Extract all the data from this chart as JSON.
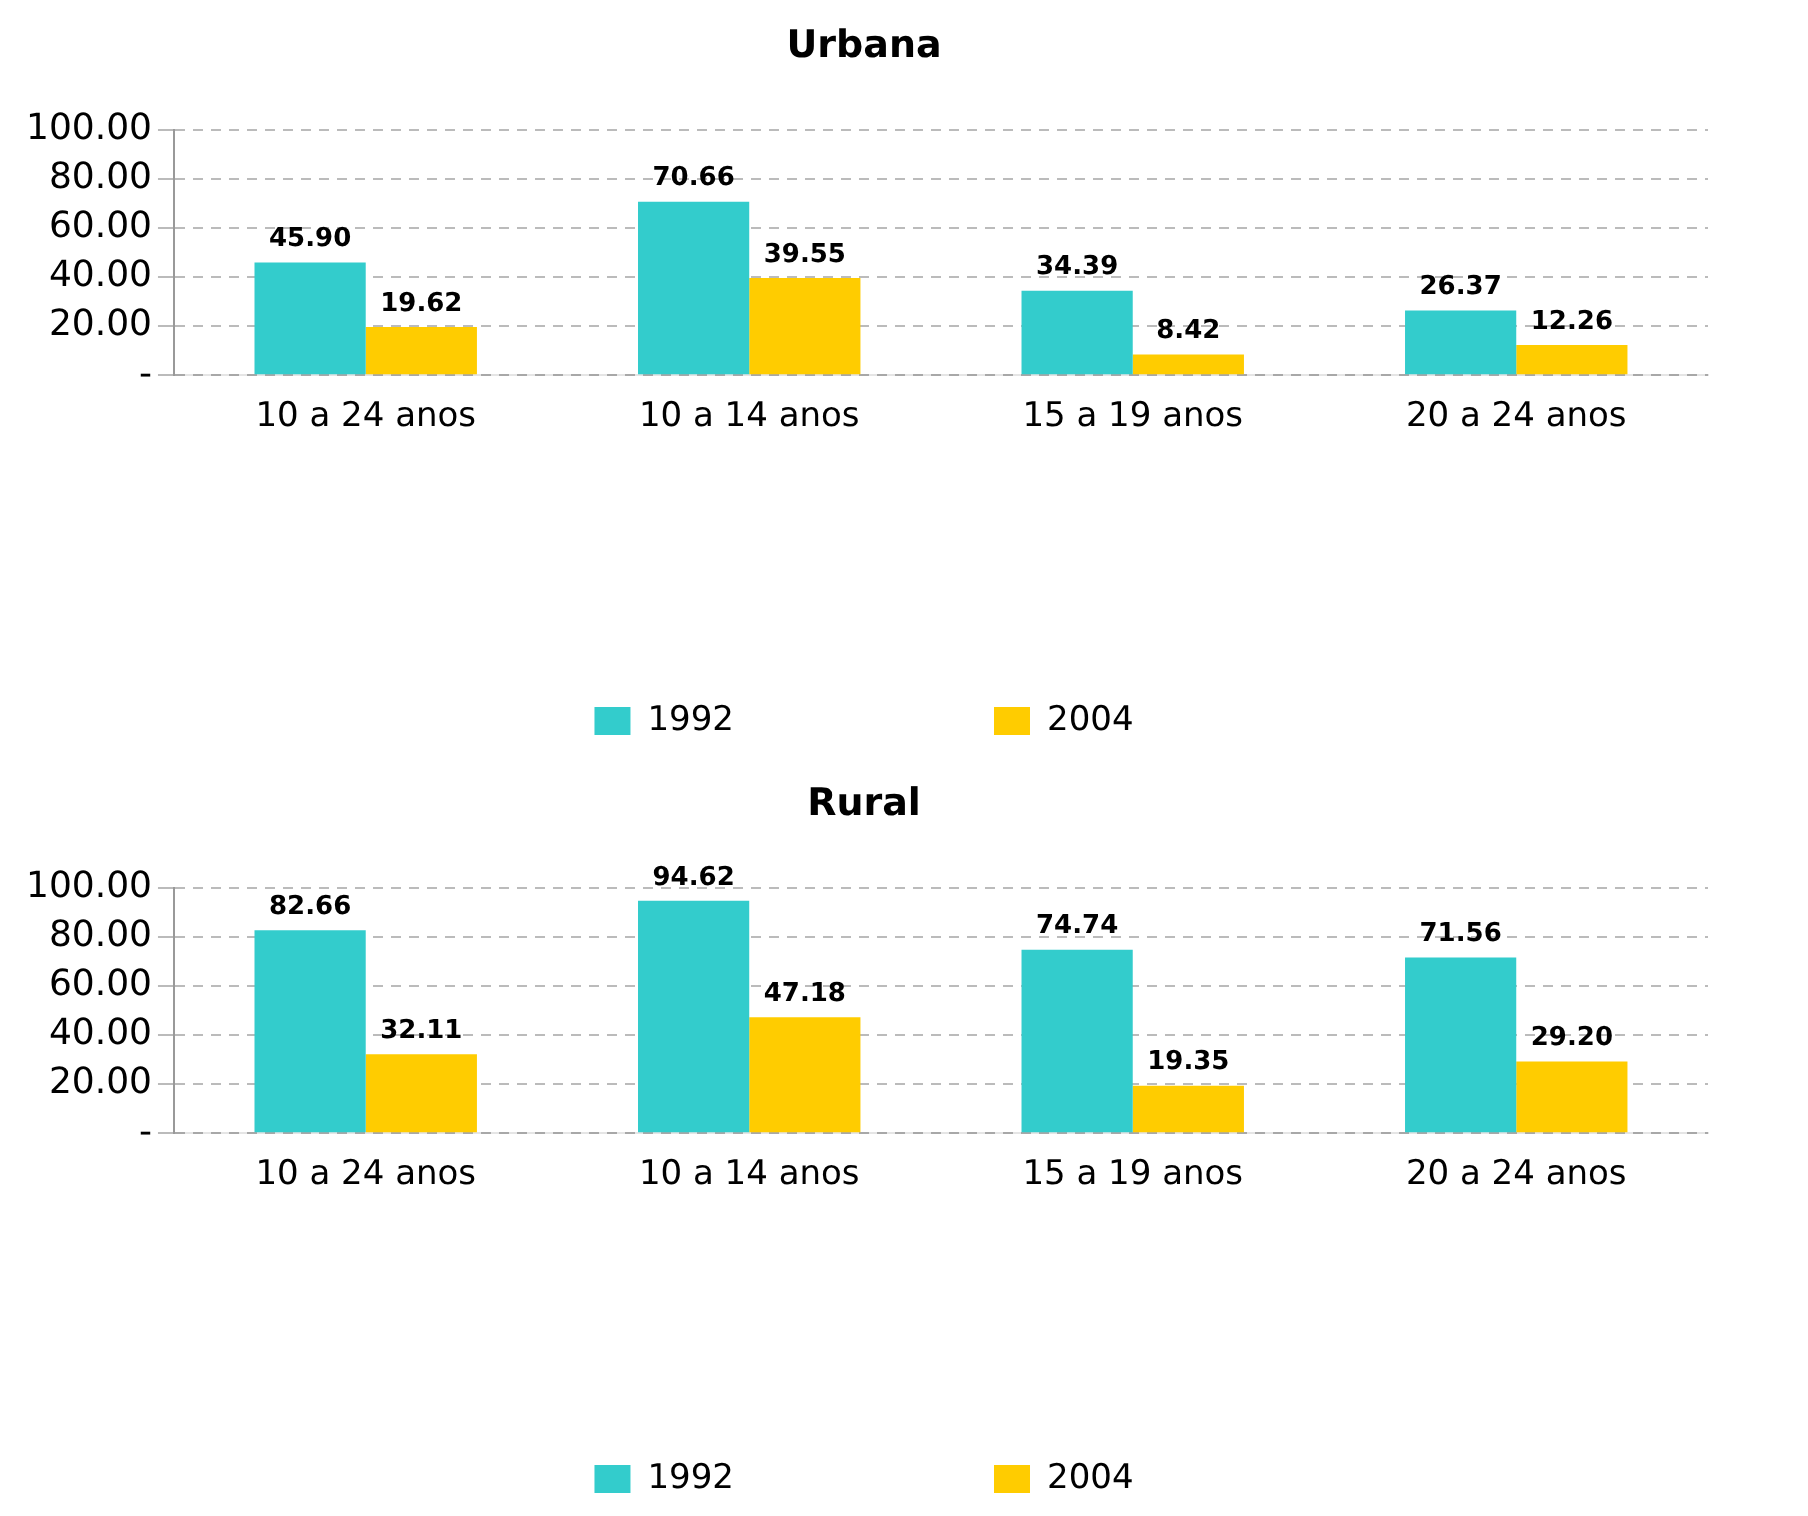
{
  "chart_data": [
    {
      "type": "bar",
      "title": "Urbana",
      "categories": [
        "10 a 24 anos",
        "10 a 14 anos",
        "15 a 19 anos",
        "20 a 24 anos"
      ],
      "series": [
        {
          "name": "1992",
          "color": "#33cccc",
          "values": [
            45.9,
            70.66,
            34.39,
            26.37
          ],
          "value_labels": [
            "45.90",
            "70.66",
            "34.39",
            "26.37"
          ]
        },
        {
          "name": "2004",
          "color": "#ffcc00",
          "values": [
            19.62,
            39.55,
            8.42,
            12.26
          ],
          "value_labels": [
            "19.62",
            "39.55",
            "8.42",
            "12.26"
          ]
        }
      ],
      "ylim": [
        0,
        100
      ],
      "yticks": [
        {
          "value": 0,
          "label": "-"
        },
        {
          "value": 20,
          "label": "20.00"
        },
        {
          "value": 40,
          "label": "40.00"
        },
        {
          "value": 60,
          "label": "60.00"
        },
        {
          "value": 80,
          "label": "80.00"
        },
        {
          "value": 100,
          "label": "100.00"
        }
      ],
      "grid": "y",
      "legend": "bottom"
    },
    {
      "type": "bar",
      "title": "Rural",
      "categories": [
        "10 a 24 anos",
        "10 a 14 anos",
        "15 a 19 anos",
        "20 a 24 anos"
      ],
      "series": [
        {
          "name": "1992",
          "color": "#33cccc",
          "values": [
            82.66,
            94.62,
            74.74,
            71.56
          ],
          "value_labels": [
            "82.66",
            "94.62",
            "74.74",
            "71.56"
          ]
        },
        {
          "name": "2004",
          "color": "#ffcc00",
          "values": [
            32.11,
            47.18,
            19.35,
            29.2
          ],
          "value_labels": [
            "32.11",
            "47.18",
            "19.35",
            "29.20"
          ]
        }
      ],
      "ylim": [
        0,
        100
      ],
      "yticks": [
        {
          "value": 0,
          "label": "-"
        },
        {
          "value": 20,
          "label": "20.00"
        },
        {
          "value": 40,
          "label": "40.00"
        },
        {
          "value": 60,
          "label": "60.00"
        },
        {
          "value": 80,
          "label": "80.00"
        },
        {
          "value": 100,
          "label": "100.00"
        }
      ],
      "grid": "y",
      "legend": "bottom"
    }
  ]
}
